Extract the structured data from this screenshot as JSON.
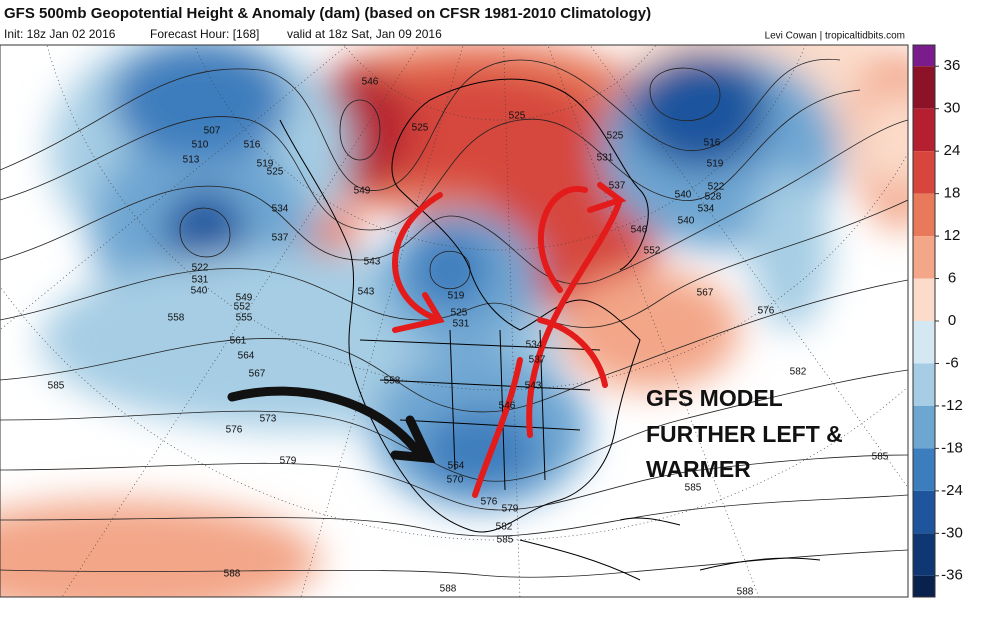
{
  "header": {
    "title": "GFS 500mb Geopotential Height & Anomaly (dam) (based on CFSR 1981-2010 Climatology)",
    "init": "Init: 18z Jan 02 2016",
    "forecast": "Forecast Hour: [168]",
    "valid": "valid at 18z Sat, Jan 09 2016",
    "credit": "Levi Cowan | tropicaltidbits.com"
  },
  "colorbar": {
    "lim": [
      -39,
      39
    ],
    "ticks": [
      36,
      30,
      24,
      18,
      12,
      6,
      0,
      -6,
      -12,
      -18,
      -24,
      -30,
      -36
    ],
    "colors": [
      "#7a1c8c",
      "#8c1228",
      "#b4202f",
      "#d6463c",
      "#e8795a",
      "#f3a688",
      "#fbdccb",
      "#d4e8f3",
      "#a6cde4",
      "#6ea6d2",
      "#3c7dbd",
      "#1e559d",
      "#0f3773",
      "#08214d"
    ]
  },
  "contour_labels": [
    "546",
    "525",
    "525",
    "525",
    "531",
    "537",
    "516",
    "519",
    "522",
    "528",
    "534",
    "540",
    "507",
    "510",
    "513",
    "516",
    "519",
    "525",
    "534",
    "537",
    "540",
    "543",
    "543",
    "519",
    "525",
    "531",
    "549",
    "546",
    "552",
    "522",
    "531",
    "540",
    "549",
    "552",
    "555",
    "558",
    "561",
    "564",
    "567",
    "573",
    "576",
    "579",
    "558",
    "534",
    "537",
    "543",
    "546",
    "564",
    "570",
    "576",
    "579",
    "582",
    "585",
    "588",
    "588",
    "588",
    "585",
    "582",
    "576",
    "567",
    "585",
    "585"
  ],
  "annotation": [
    "GFS MODEL",
    "FURTHER LEFT &",
    "WARMER"
  ]
}
